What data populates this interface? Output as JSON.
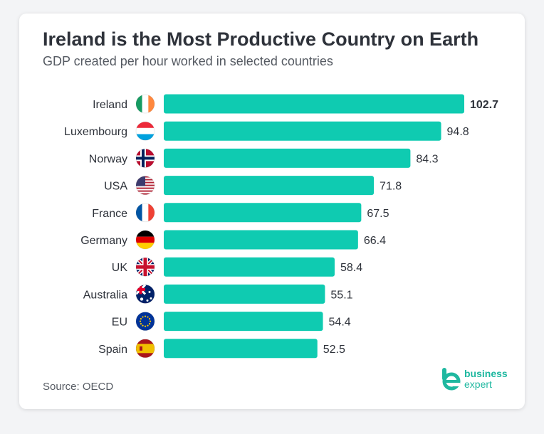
{
  "header": {
    "title": "Ireland is the Most Productive Country on Earth",
    "subtitle": "GDP created per hour worked in selected countries"
  },
  "footer": {
    "source": "Source: OECD",
    "brand_line1": "business",
    "brand_line2": "expert"
  },
  "colors": {
    "bar": "#0fcbb1",
    "text": "#2e323a",
    "brand": "#1fb8a0"
  },
  "chart_data": {
    "type": "bar",
    "orientation": "horizontal",
    "title": "Ireland is the Most Productive Country on Earth",
    "subtitle": "GDP created per hour worked in selected countries",
    "categories": [
      "Ireland",
      "Luxembourg",
      "Norway",
      "USA",
      "France",
      "Germany",
      "UK",
      "Australia",
      "EU",
      "Spain"
    ],
    "values": [
      102.7,
      94.8,
      84.3,
      71.8,
      67.5,
      66.4,
      58.4,
      55.1,
      54.4,
      52.5
    ],
    "flags": [
      "ireland-flag-icon",
      "luxembourg-flag-icon",
      "norway-flag-icon",
      "usa-flag-icon",
      "france-flag-icon",
      "germany-flag-icon",
      "uk-flag-icon",
      "australia-flag-icon",
      "eu-flag-icon",
      "spain-flag-icon"
    ],
    "highlight": "Ireland",
    "xlim": [
      0,
      102.7
    ]
  }
}
